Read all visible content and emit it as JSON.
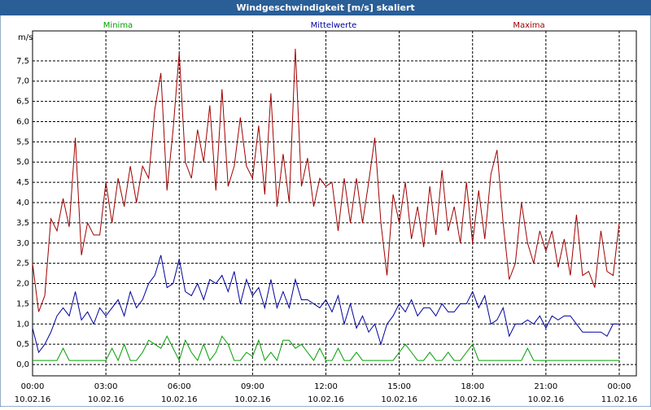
{
  "chart_data": {
    "type": "line",
    "title": "Windgeschwindigkeit [m/s] skaliert",
    "y_label": "m/s",
    "x": [
      0,
      0.25,
      0.5,
      0.75,
      1,
      1.25,
      1.5,
      1.75,
      2,
      2.25,
      2.5,
      2.75,
      3,
      3.25,
      3.5,
      3.75,
      4,
      4.25,
      4.5,
      4.75,
      5,
      5.25,
      5.5,
      5.75,
      6,
      6.25,
      6.5,
      6.75,
      7,
      7.25,
      7.5,
      7.75,
      8,
      8.25,
      8.5,
      8.75,
      9,
      9.25,
      9.5,
      9.75,
      10,
      10.25,
      10.5,
      10.75,
      11,
      11.25,
      11.5,
      11.75,
      12,
      12.25,
      12.5,
      12.75,
      13,
      13.25,
      13.5,
      13.75,
      14,
      14.25,
      14.5,
      14.75,
      15,
      15.25,
      15.5,
      15.75,
      16,
      16.25,
      16.5,
      16.75,
      17,
      17.25,
      17.5,
      17.75,
      18,
      18.25,
      18.5,
      18.75,
      19,
      19.25,
      19.5,
      19.75,
      20,
      20.25,
      20.5,
      20.75,
      21,
      21.25,
      21.5,
      21.75,
      22,
      22.25,
      22.5,
      22.75,
      23,
      23.25,
      23.5,
      23.75,
      24
    ],
    "series": [
      {
        "name": "Minima",
        "color": "#00a000",
        "values": [
          0.1,
          0.1,
          0.1,
          0.1,
          0.1,
          0.4,
          0.1,
          0.1,
          0.1,
          0.1,
          0.1,
          0.1,
          0.1,
          0.4,
          0.1,
          0.5,
          0.1,
          0.1,
          0.3,
          0.6,
          0.5,
          0.4,
          0.7,
          0.4,
          0.1,
          0.6,
          0.3,
          0.1,
          0.5,
          0.1,
          0.3,
          0.7,
          0.5,
          0.1,
          0.1,
          0.3,
          0.2,
          0.6,
          0.1,
          0.3,
          0.1,
          0.6,
          0.6,
          0.4,
          0.5,
          0.3,
          0.1,
          0.4,
          0.1,
          0.1,
          0.4,
          0.1,
          0.1,
          0.3,
          0.1,
          0.1,
          0.1,
          0.1,
          0.1,
          0.1,
          0.3,
          0.5,
          0.3,
          0.1,
          0.1,
          0.3,
          0.1,
          0.1,
          0.3,
          0.1,
          0.1,
          0.3,
          0.5,
          0.1,
          0.1,
          0.1,
          0.1,
          0.1,
          0.1,
          0.1,
          0.1,
          0.4,
          0.1,
          0.1,
          0.1,
          0.1,
          0.1,
          0.1,
          0.1,
          0.1,
          0.1,
          0.1,
          0.1,
          0.1,
          0.1,
          0.1,
          0.1
        ]
      },
      {
        "name": "Mittelwerte",
        "color": "#0000a0",
        "values": [
          0.9,
          0.3,
          0.5,
          0.8,
          1.2,
          1.4,
          1.2,
          1.8,
          1.1,
          1.3,
          1.0,
          1.4,
          1.2,
          1.4,
          1.6,
          1.2,
          1.8,
          1.4,
          1.6,
          2.0,
          2.2,
          2.7,
          1.9,
          2.0,
          2.6,
          1.8,
          1.7,
          2.0,
          1.6,
          2.1,
          2.0,
          2.2,
          1.8,
          2.3,
          1.5,
          2.1,
          1.7,
          1.9,
          1.4,
          2.1,
          1.4,
          1.8,
          1.4,
          2.1,
          1.6,
          1.6,
          1.5,
          1.4,
          1.6,
          1.3,
          1.7,
          1.0,
          1.5,
          0.9,
          1.2,
          0.8,
          1.0,
          0.5,
          1.0,
          1.2,
          1.5,
          1.3,
          1.6,
          1.2,
          1.4,
          1.4,
          1.2,
          1.5,
          1.3,
          1.3,
          1.5,
          1.5,
          1.8,
          1.4,
          1.7,
          1.0,
          1.1,
          1.4,
          0.7,
          1.0,
          1.0,
          1.1,
          1.0,
          1.2,
          0.9,
          1.2,
          1.1,
          1.2,
          1.2,
          1.0,
          0.8,
          0.8,
          0.8,
          0.8,
          0.7,
          1.0,
          1.0
        ]
      },
      {
        "name": "Maxima",
        "color": "#a00000",
        "values": [
          2.5,
          1.3,
          1.7,
          3.6,
          3.3,
          4.1,
          3.4,
          5.6,
          2.7,
          3.5,
          3.2,
          3.2,
          4.5,
          3.5,
          4.6,
          3.9,
          4.9,
          4.0,
          4.9,
          4.6,
          6.3,
          7.2,
          4.3,
          5.8,
          7.7,
          5.0,
          4.6,
          5.8,
          5.0,
          6.4,
          4.3,
          6.8,
          4.4,
          4.9,
          6.1,
          4.9,
          4.6,
          5.9,
          4.2,
          6.7,
          3.9,
          5.2,
          4.0,
          7.8,
          4.4,
          5.1,
          3.9,
          4.6,
          4.4,
          4.5,
          3.3,
          4.6,
          3.5,
          4.6,
          3.5,
          4.5,
          5.6,
          3.5,
          2.2,
          4.2,
          3.5,
          4.5,
          3.1,
          3.9,
          2.9,
          4.4,
          3.2,
          4.8,
          3.3,
          3.9,
          3.0,
          4.5,
          3.0,
          4.3,
          3.1,
          4.7,
          5.3,
          3.5,
          2.1,
          2.5,
          4.0,
          3.0,
          2.5,
          3.3,
          2.8,
          3.3,
          2.4,
          3.1,
          2.2,
          3.7,
          2.2,
          2.3,
          1.9,
          3.3,
          2.3,
          2.2,
          3.5
        ]
      }
    ],
    "xlim": [
      0,
      24.7
    ],
    "ylim": [
      -0.28,
      8.24
    ],
    "xticks": [
      {
        "value": 0,
        "label": "00:00",
        "date": "10.02.16"
      },
      {
        "value": 3,
        "label": "03:00",
        "date": "10.02.16"
      },
      {
        "value": 6,
        "label": "06:00",
        "date": "10.02.16"
      },
      {
        "value": 9,
        "label": "09:00",
        "date": "10.02.16"
      },
      {
        "value": 12,
        "label": "12:00",
        "date": "10.02.16"
      },
      {
        "value": 15,
        "label": "15:00",
        "date": "10.02.16"
      },
      {
        "value": 18,
        "label": "18:00",
        "date": "10.02.16"
      },
      {
        "value": 21,
        "label": "21:00",
        "date": "10.02.16"
      },
      {
        "value": 24,
        "label": "00:00",
        "date": "11.02.16"
      }
    ],
    "yticks": [
      {
        "value": 0,
        "label": "0,0"
      },
      {
        "value": 0.5,
        "label": "0,5"
      },
      {
        "value": 1,
        "label": "1,0"
      },
      {
        "value": 1.5,
        "label": "1,5"
      },
      {
        "value": 2,
        "label": "2,0"
      },
      {
        "value": 2.5,
        "label": "2,5"
      },
      {
        "value": 3,
        "label": "3,0"
      },
      {
        "value": 3.5,
        "label": "3,5"
      },
      {
        "value": 4,
        "label": "4,0"
      },
      {
        "value": 4.5,
        "label": "4,5"
      },
      {
        "value": 5,
        "label": "5,0"
      },
      {
        "value": 5.5,
        "label": "5,5"
      },
      {
        "value": 6,
        "label": "6,0"
      },
      {
        "value": 6.5,
        "label": "6,5"
      },
      {
        "value": 7,
        "label": "7,0"
      },
      {
        "value": 7.5,
        "label": "7,5"
      }
    ],
    "grid": true
  }
}
